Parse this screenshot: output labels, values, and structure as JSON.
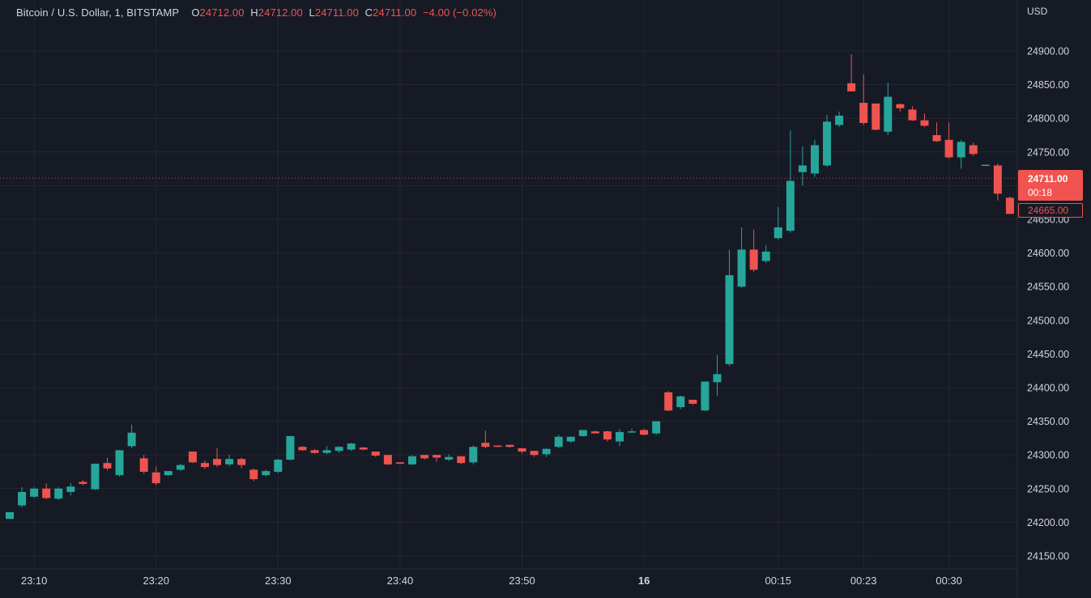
{
  "header": {
    "symbol": "Bitcoin / U.S. Dollar, 1, BITSTAMP",
    "o_label": "O",
    "o": "24712.00",
    "h_label": "H",
    "h": "24712.00",
    "l_label": "L",
    "l": "24711.00",
    "c_label": "C",
    "c": "24711.00",
    "change": "−4.00 (−0.02%)"
  },
  "price_axis": {
    "currency": "USD"
  },
  "last_price": {
    "price": "24711.00",
    "countdown": "00:18",
    "low_label": "24665.00"
  },
  "colors": {
    "bg": "#161a25",
    "grid": "#242733",
    "up": "#26a69a",
    "down": "#ef5350",
    "text": "#d1d4dc"
  },
  "chart_data": {
    "type": "candlestick",
    "ylim": [
      24130,
      24935
    ],
    "y_ticks": [
      24150,
      24200,
      24250,
      24300,
      24350,
      24400,
      24450,
      24500,
      24550,
      24600,
      24650,
      24700,
      24750,
      24800,
      24850,
      24900
    ],
    "x_ticks": [
      {
        "label": "23:10",
        "index": 2
      },
      {
        "label": "23:20",
        "index": 12
      },
      {
        "label": "23:30",
        "index": 22
      },
      {
        "label": "23:40",
        "index": 32
      },
      {
        "label": "23:50",
        "index": 42
      },
      {
        "label": "16",
        "index": 52,
        "bold": true
      },
      {
        "label": "00:15",
        "index": 63
      },
      {
        "label": "00:23",
        "index": 70
      },
      {
        "label": "00:30",
        "index": 77
      }
    ],
    "last_price_line": 24711,
    "candles": [
      {
        "o": 24205,
        "h": 24215,
        "l": 24205,
        "c": 24215
      },
      {
        "o": 24225,
        "h": 24252,
        "l": 24222,
        "c": 24245
      },
      {
        "o": 24238,
        "h": 24252,
        "l": 24236,
        "c": 24250
      },
      {
        "o": 24250,
        "h": 24258,
        "l": 24234,
        "c": 24236
      },
      {
        "o": 24235,
        "h": 24252,
        "l": 24233,
        "c": 24250
      },
      {
        "o": 24245,
        "h": 24258,
        "l": 24240,
        "c": 24253
      },
      {
        "o": 24260,
        "h": 24263,
        "l": 24255,
        "c": 24257
      },
      {
        "o": 24249,
        "h": 24287,
        "l": 24248,
        "c": 24287
      },
      {
        "o": 24288,
        "h": 24296,
        "l": 24277,
        "c": 24280
      },
      {
        "o": 24270,
        "h": 24307,
        "l": 24268,
        "c": 24307
      },
      {
        "o": 24313,
        "h": 24345,
        "l": 24310,
        "c": 24333
      },
      {
        "o": 24295,
        "h": 24300,
        "l": 24272,
        "c": 24275
      },
      {
        "o": 24274,
        "h": 24283,
        "l": 24255,
        "c": 24258
      },
      {
        "o": 24270,
        "h": 24276,
        "l": 24269,
        "c": 24276
      },
      {
        "o": 24278,
        "h": 24287,
        "l": 24276,
        "c": 24285
      },
      {
        "o": 24305,
        "h": 24305,
        "l": 24288,
        "c": 24289
      },
      {
        "o": 24288,
        "h": 24292,
        "l": 24279,
        "c": 24282
      },
      {
        "o": 24294,
        "h": 24310,
        "l": 24282,
        "c": 24285
      },
      {
        "o": 24286,
        "h": 24300,
        "l": 24283,
        "c": 24294
      },
      {
        "o": 24294,
        "h": 24296,
        "l": 24280,
        "c": 24285
      },
      {
        "o": 24278,
        "h": 24280,
        "l": 24261,
        "c": 24264
      },
      {
        "o": 24270,
        "h": 24278,
        "l": 24268,
        "c": 24276
      },
      {
        "o": 24275,
        "h": 24294,
        "l": 24273,
        "c": 24293
      },
      {
        "o": 24293,
        "h": 24328,
        "l": 24292,
        "c": 24328
      },
      {
        "o": 24312,
        "h": 24313,
        "l": 24306,
        "c": 24307
      },
      {
        "o": 24307,
        "h": 24309,
        "l": 24302,
        "c": 24303
      },
      {
        "o": 24303,
        "h": 24313,
        "l": 24301,
        "c": 24307
      },
      {
        "o": 24306,
        "h": 24313,
        "l": 24303,
        "c": 24312
      },
      {
        "o": 24308,
        "h": 24318,
        "l": 24306,
        "c": 24317
      },
      {
        "o": 24311,
        "h": 24312,
        "l": 24307,
        "c": 24308
      },
      {
        "o": 24305,
        "h": 24305,
        "l": 24297,
        "c": 24299
      },
      {
        "o": 24300,
        "h": 24300,
        "l": 24285,
        "c": 24286
      },
      {
        "o": 24289,
        "h": 24289,
        "l": 24286,
        "c": 24287
      },
      {
        "o": 24286,
        "h": 24300,
        "l": 24285,
        "c": 24298
      },
      {
        "o": 24300,
        "h": 24300,
        "l": 24293,
        "c": 24295
      },
      {
        "o": 24300,
        "h": 24300,
        "l": 24290,
        "c": 24296
      },
      {
        "o": 24293,
        "h": 24301,
        "l": 24291,
        "c": 24297
      },
      {
        "o": 24298,
        "h": 24298,
        "l": 24286,
        "c": 24288
      },
      {
        "o": 24289,
        "h": 24314,
        "l": 24286,
        "c": 24312
      },
      {
        "o": 24318,
        "h": 24336,
        "l": 24310,
        "c": 24312
      },
      {
        "o": 24314,
        "h": 24314,
        "l": 24312,
        "c": 24312
      },
      {
        "o": 24315,
        "h": 24315,
        "l": 24311,
        "c": 24312
      },
      {
        "o": 24310,
        "h": 24310,
        "l": 24302,
        "c": 24305
      },
      {
        "o": 24306,
        "h": 24306,
        "l": 24297,
        "c": 24300
      },
      {
        "o": 24301,
        "h": 24310,
        "l": 24297,
        "c": 24309
      },
      {
        "o": 24312,
        "h": 24330,
        "l": 24310,
        "c": 24327
      },
      {
        "o": 24320,
        "h": 24327,
        "l": 24318,
        "c": 24327
      },
      {
        "o": 24328,
        "h": 24337,
        "l": 24327,
        "c": 24337
      },
      {
        "o": 24335,
        "h": 24336,
        "l": 24332,
        "c": 24332
      },
      {
        "o": 24335,
        "h": 24336,
        "l": 24320,
        "c": 24323
      },
      {
        "o": 24320,
        "h": 24338,
        "l": 24313,
        "c": 24334
      },
      {
        "o": 24334,
        "h": 24339,
        "l": 24333,
        "c": 24335
      },
      {
        "o": 24337,
        "h": 24339,
        "l": 24329,
        "c": 24330
      },
      {
        "o": 24332,
        "h": 24350,
        "l": 24330,
        "c": 24350
      },
      {
        "o": 24393,
        "h": 24395,
        "l": 24365,
        "c": 24366
      },
      {
        "o": 24371,
        "h": 24388,
        "l": 24368,
        "c": 24387
      },
      {
        "o": 24382,
        "h": 24382,
        "l": 24374,
        "c": 24376
      },
      {
        "o": 24366,
        "h": 24409,
        "l": 24365,
        "c": 24409
      },
      {
        "o": 24408,
        "h": 24448,
        "l": 24388,
        "c": 24420
      },
      {
        "o": 24435,
        "h": 24605,
        "l": 24432,
        "c": 24567
      },
      {
        "o": 24550,
        "h": 24638,
        "l": 24548,
        "c": 24605
      },
      {
        "o": 24605,
        "h": 24635,
        "l": 24572,
        "c": 24575
      },
      {
        "o": 24588,
        "h": 24612,
        "l": 24585,
        "c": 24602
      },
      {
        "o": 24622,
        "h": 24668,
        "l": 24620,
        "c": 24638
      },
      {
        "o": 24633,
        "h": 24782,
        "l": 24630,
        "c": 24707
      },
      {
        "o": 24720,
        "h": 24758,
        "l": 24700,
        "c": 24730
      },
      {
        "o": 24718,
        "h": 24768,
        "l": 24713,
        "c": 24760
      },
      {
        "o": 24730,
        "h": 24805,
        "l": 24728,
        "c": 24795
      },
      {
        "o": 24790,
        "h": 24810,
        "l": 24787,
        "c": 24804
      },
      {
        "o": 24852,
        "h": 24895,
        "l": 24840,
        "c": 24840
      },
      {
        "o": 24823,
        "h": 24865,
        "l": 24790,
        "c": 24793
      },
      {
        "o": 24822,
        "h": 24822,
        "l": 24782,
        "c": 24783
      },
      {
        "o": 24780,
        "h": 24853,
        "l": 24775,
        "c": 24832
      },
      {
        "o": 24821,
        "h": 24822,
        "l": 24810,
        "c": 24815
      },
      {
        "o": 24813,
        "h": 24818,
        "l": 24796,
        "c": 24797
      },
      {
        "o": 24797,
        "h": 24807,
        "l": 24787,
        "c": 24789
      },
      {
        "o": 24775,
        "h": 24794,
        "l": 24765,
        "c": 24766
      },
      {
        "o": 24768,
        "h": 24794,
        "l": 24740,
        "c": 24742
      },
      {
        "o": 24742,
        "h": 24768,
        "l": 24725,
        "c": 24765
      },
      {
        "o": 24760,
        "h": 24764,
        "l": 24744,
        "c": 24747
      },
      {
        "o": 24730,
        "h": 24731,
        "l": 24729,
        "c": 24731
      },
      {
        "o": 24730,
        "h": 24733,
        "l": 24678,
        "c": 24688
      },
      {
        "o": 24682,
        "h": 24684,
        "l": 24658,
        "c": 24658
      }
    ]
  }
}
